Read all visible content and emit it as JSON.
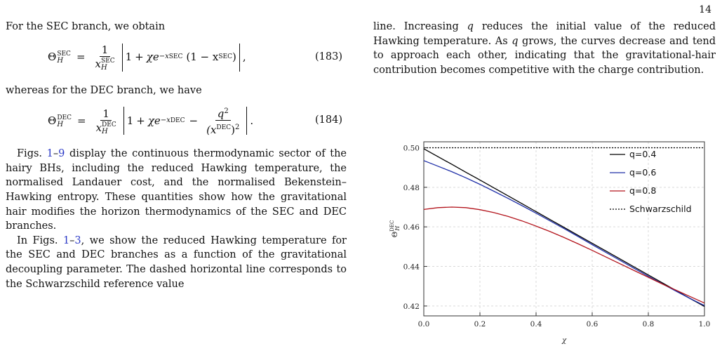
{
  "page": {
    "number": "14"
  },
  "left": {
    "p_sec_intro": "For the SEC branch, we obtain",
    "eq183": {
      "lhs_sym": "Θ",
      "sub": "H",
      "sup": "SEC",
      "num": "1",
      "den_var": "x",
      "den_sub": "H",
      "den_sup": "SEC",
      "one": "1",
      "plus": "+",
      "chi": "χ",
      "exp_base": "e",
      "exp_text": "−x",
      "exp_sup": "SEC",
      "mid_open": "(1 − x",
      "mid_sup": "SEC",
      "mid_close": ")",
      "tail": ",",
      "number": "(183)"
    },
    "p_dec_intro": "whereas for the DEC branch, we have",
    "eq184": {
      "lhs_sym": "Θ",
      "sub": "H",
      "sup": "DEC",
      "num": "1",
      "den_var": "x",
      "den_sub": "H",
      "den_sup": "DEC",
      "one": "1",
      "plus": "+",
      "chi": "χ",
      "exp_base": "e",
      "exp_text": "−x",
      "exp_sup": "DEC",
      "minus": "−",
      "q_num": "q",
      "q_num_sup": "2",
      "q_den_open": "(x",
      "q_den_sup": "DEC",
      "q_den_close": ")",
      "q_den_pow": "2",
      "tail": ".",
      "number": "(184)"
    },
    "p3_before": "Figs. ",
    "p3_ref_a": "1",
    "p3_dash": "–",
    "p3_ref_b": "9",
    "p3_after": " display the continuous thermodynamic sector of the hairy BHs, including the reduced Hawking temperature, the normalised Landauer cost, and the normalised Bekenstein–Hawking entropy. These quantities show how the gravitational hair modifies the horizon thermodynamics of the SEC and DEC branches.",
    "p4_before": "In Figs. ",
    "p4_ref_a": "1",
    "p4_dash": "–",
    "p4_ref_b": "3",
    "p4_after": ", we show the reduced Hawking temperature for the SEC and DEC branches as a function of the gravitational decoupling parameter. The dashed horizontal line corresponds to the Schwarzschild reference value"
  },
  "right": {
    "p1_before": "line. Increasing ",
    "p1_q1": "q",
    "p1_mid": " reduces the initial value of the reduced Hawking temperature. As ",
    "p1_q2": "q",
    "p1_after": " grows, the curves decrease and tend to approach each other, indicating that the gravitational-hair contribution becomes competitive with the charge contribution."
  },
  "chart_data": {
    "type": "line",
    "xlabel": "χ",
    "ylabel": "Θ_H^DEC",
    "xlim": [
      0.0,
      1.0
    ],
    "ylim": [
      0.415,
      0.503
    ],
    "x_ticks": [
      0.0,
      0.2,
      0.4,
      0.6,
      0.8,
      1.0
    ],
    "x_tick_labels": [
      "0.0",
      "0.2",
      "0.4",
      "0.6",
      "0.8",
      "1.0"
    ],
    "y_ticks": [
      0.42,
      0.44,
      0.46,
      0.48,
      0.5
    ],
    "y_tick_labels": [
      "0.42",
      "0.44",
      "0.46",
      "0.48",
      "0.50"
    ],
    "grid": true,
    "legend_position": "top-right",
    "x": [
      0.0,
      0.05,
      0.1,
      0.15,
      0.2,
      0.25,
      0.3,
      0.35,
      0.4,
      0.45,
      0.5,
      0.55,
      0.6,
      0.65,
      0.7,
      0.75,
      0.8,
      0.85,
      0.9,
      0.95,
      1.0
    ],
    "series": [
      {
        "name": "q=0.4",
        "color": "#000000",
        "dash": "solid",
        "values": [
          0.4995,
          0.4955,
          0.4916,
          0.4876,
          0.4837,
          0.4797,
          0.4757,
          0.4717,
          0.4677,
          0.4637,
          0.4597,
          0.4557,
          0.4517,
          0.4477,
          0.4437,
          0.4397,
          0.4357,
          0.4317,
          0.4277,
          0.4237,
          0.4198
        ]
      },
      {
        "name": "q=0.6",
        "color": "#1f2fa8",
        "dash": "solid",
        "values": [
          0.4935,
          0.4907,
          0.4879,
          0.4848,
          0.4815,
          0.478,
          0.4744,
          0.4707,
          0.4669,
          0.463,
          0.4591,
          0.4551,
          0.451,
          0.447,
          0.443,
          0.439,
          0.435,
          0.4312,
          0.4274,
          0.4237,
          0.4202
        ]
      },
      {
        "name": "q=0.8",
        "color": "#b3141c",
        "dash": "solid",
        "values": [
          0.4688,
          0.4697,
          0.47,
          0.4697,
          0.4687,
          0.4672,
          0.4653,
          0.463,
          0.4604,
          0.4576,
          0.4546,
          0.4514,
          0.4481,
          0.4447,
          0.4413,
          0.4379,
          0.4345,
          0.4311,
          0.4279,
          0.4247,
          0.4215
        ]
      },
      {
        "name": "Schwarzschild",
        "color": "#000000",
        "dash": "dotted",
        "values": [
          0.5,
          0.5,
          0.5,
          0.5,
          0.5,
          0.5,
          0.5,
          0.5,
          0.5,
          0.5,
          0.5,
          0.5,
          0.5,
          0.5,
          0.5,
          0.5,
          0.5,
          0.5,
          0.5,
          0.5,
          0.5
        ]
      }
    ]
  }
}
